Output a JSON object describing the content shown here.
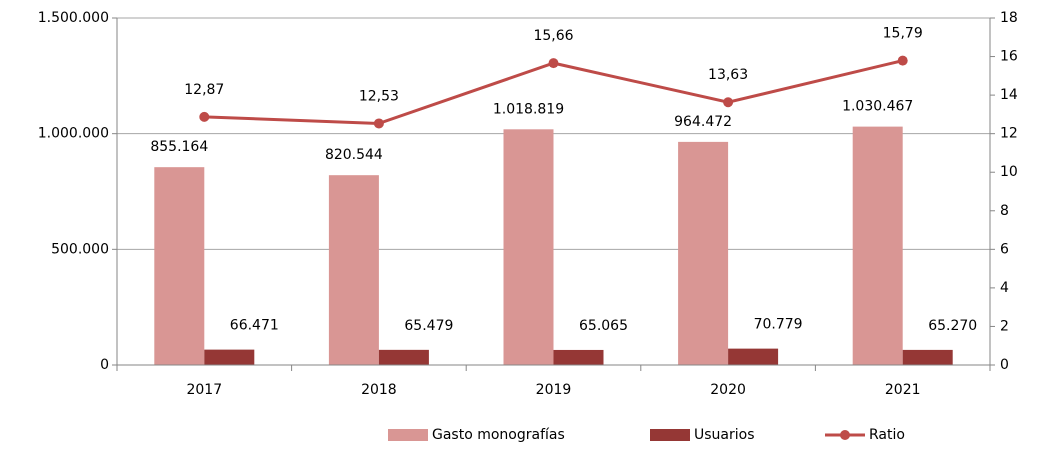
{
  "chart_data": {
    "type": "bar_line",
    "categories": [
      "2017",
      "2018",
      "2019",
      "2020",
      "2021"
    ],
    "series": [
      {
        "name": "Gasto monografías",
        "color": "#d99694",
        "type": "bar",
        "values": [
          855164,
          820544,
          1018819,
          964472,
          1030467
        ],
        "value_labels": [
          "855.164",
          "820.544",
          "1.018.819",
          "964.472",
          "1.030.467"
        ]
      },
      {
        "name": "Usuarios",
        "color": "#953735",
        "type": "bar",
        "values": [
          66471,
          65479,
          65065,
          70779,
          65270
        ],
        "value_labels": [
          "66.471",
          "65.479",
          "65.065",
          "70.779",
          "65.270"
        ]
      },
      {
        "name": "Ratio",
        "color": "#be4b48",
        "type": "line",
        "axis": "y2",
        "values": [
          12.87,
          12.53,
          15.66,
          13.63,
          15.79
        ],
        "value_labels": [
          "12,87",
          "12,53",
          "15,66",
          "13,63",
          "15,79"
        ]
      }
    ],
    "ylim": [
      0,
      1500000
    ],
    "yticks": [
      0,
      {
        "value": 500000,
        "label": "500.000"
      },
      {
        "value": 1000000,
        "label": "1.000.000"
      },
      {
        "value": 1500000,
        "label": "1.500.000"
      }
    ],
    "y2lim": [
      0,
      18
    ],
    "y2ticks": [
      0,
      2,
      4,
      6,
      8,
      10,
      12,
      14,
      16,
      18
    ],
    "grid": true,
    "legend": "bottom"
  }
}
